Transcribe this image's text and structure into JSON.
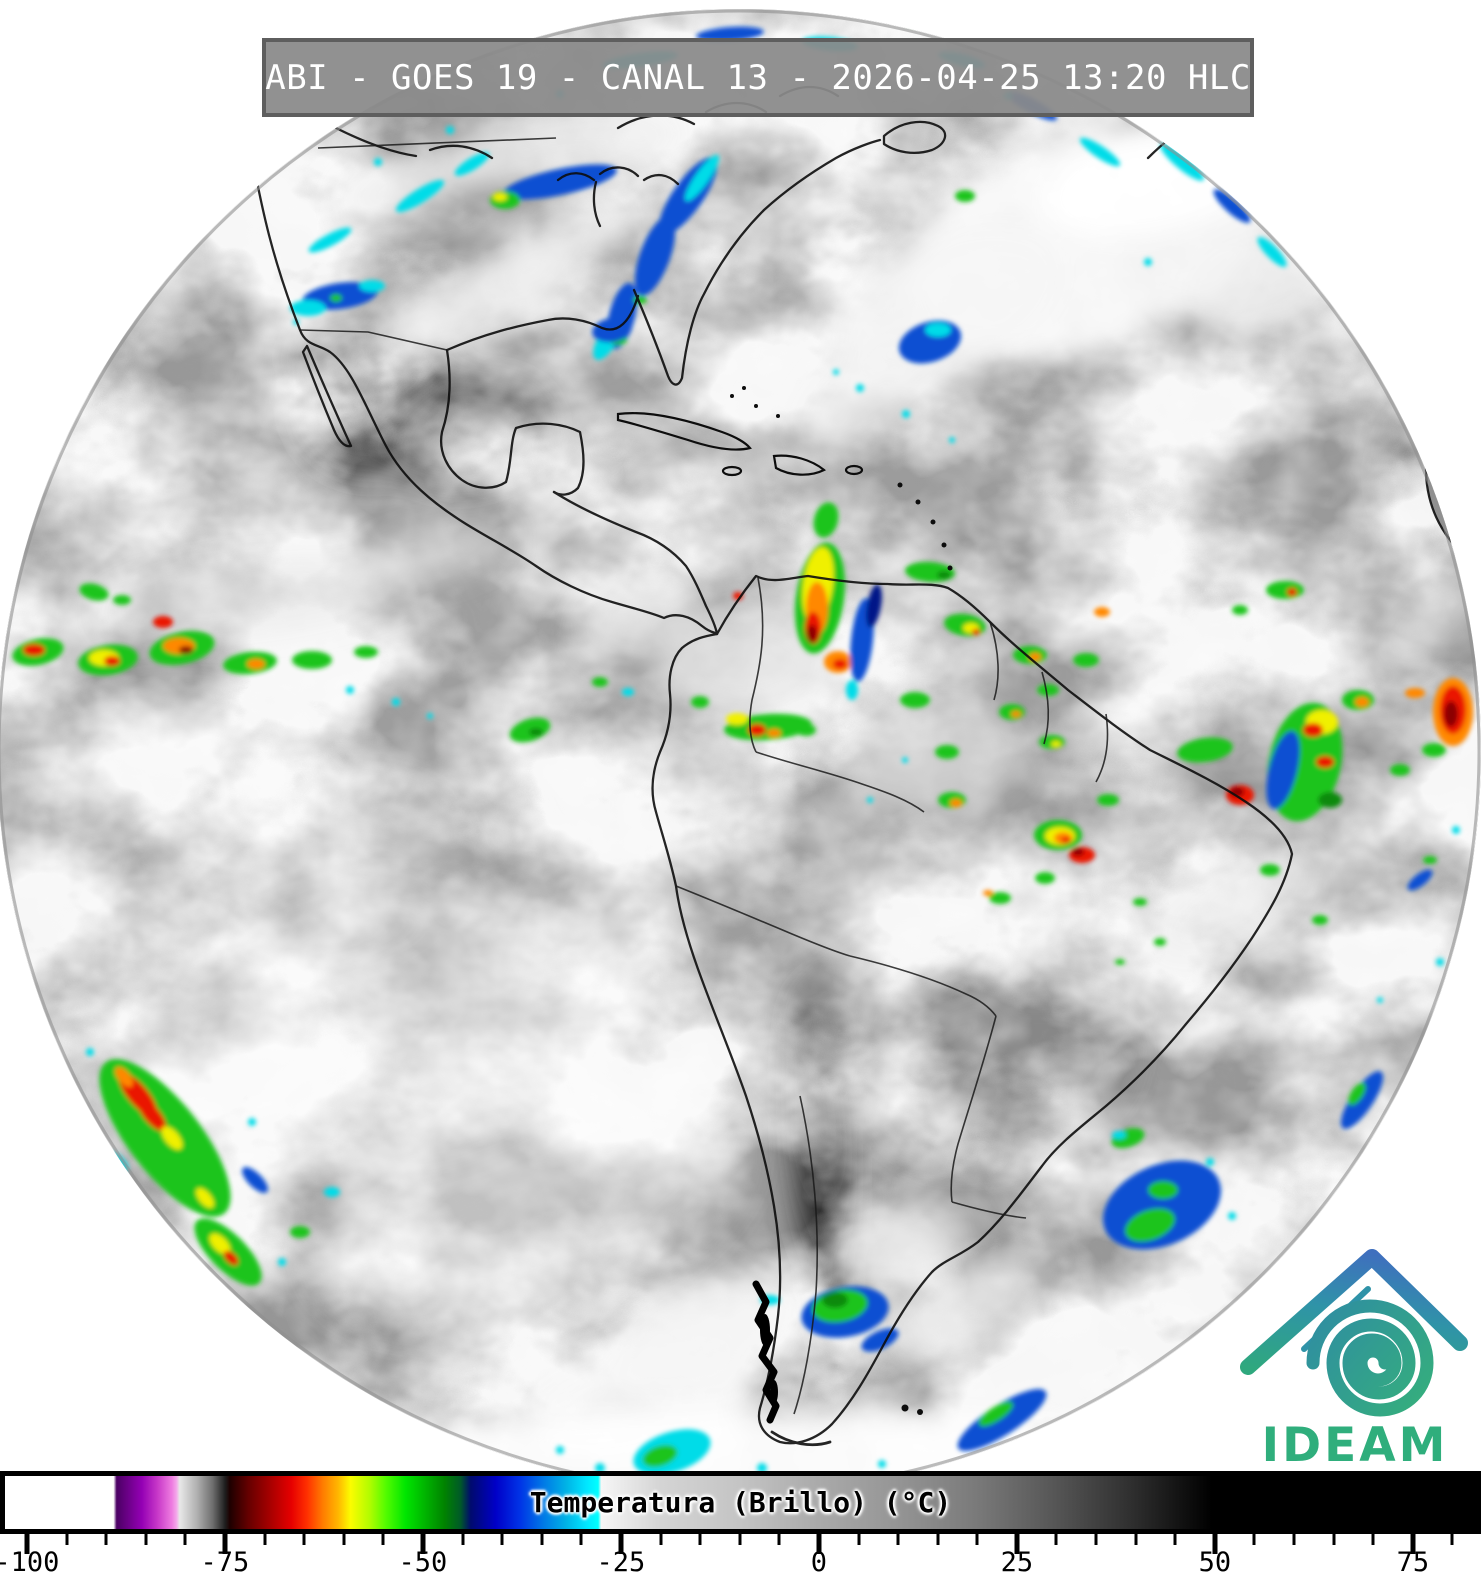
{
  "titlebar": {
    "text": "ABI - GOES 19 - CANAL 13 - 2026-04-25 13:20 HLC"
  },
  "colorbar": {
    "title": "Temperatura (Brillo) (°C)",
    "domain_min": -103.4,
    "domain_max": 83.6,
    "tick_min": -100,
    "tick_max": 80,
    "minor_step": 5,
    "major_step": 25,
    "major_tick_labels": [
      "-100",
      "-75",
      "-50",
      "-25",
      "0",
      "25",
      "50",
      "75"
    ],
    "gradient_stops": [
      {
        "t": -103.4,
        "c": "#ffffff"
      },
      {
        "t": -89.6,
        "c": "#ffffff"
      },
      {
        "t": -89.2,
        "c": "#4b0064"
      },
      {
        "t": -86.0,
        "c": "#9400b4"
      },
      {
        "t": -84.0,
        "c": "#c838c8"
      },
      {
        "t": -82.2,
        "c": "#ee7ce0"
      },
      {
        "t": -81.6,
        "c": "#f4a8ea"
      },
      {
        "t": -81.2,
        "c": "#e8e8e8"
      },
      {
        "t": -79.0,
        "c": "#b0b0b0"
      },
      {
        "t": -77.0,
        "c": "#6e6e6e"
      },
      {
        "t": -75.4,
        "c": "#1e1e1e"
      },
      {
        "t": -74.8,
        "c": "#1e0000"
      },
      {
        "t": -72.5,
        "c": "#640000"
      },
      {
        "t": -70.0,
        "c": "#a00000"
      },
      {
        "t": -67.0,
        "c": "#e60000"
      },
      {
        "t": -65.0,
        "c": "#ff3000"
      },
      {
        "t": -63.0,
        "c": "#ff7c00"
      },
      {
        "t": -61.0,
        "c": "#ffb800"
      },
      {
        "t": -59.5,
        "c": "#fcfc00"
      },
      {
        "t": -57.0,
        "c": "#b0fc00"
      },
      {
        "t": -55.0,
        "c": "#54fc00"
      },
      {
        "t": -52.5,
        "c": "#00e600"
      },
      {
        "t": -50.0,
        "c": "#00b400"
      },
      {
        "t": -47.5,
        "c": "#008200"
      },
      {
        "t": -45.5,
        "c": "#005a28"
      },
      {
        "t": -44.2,
        "c": "#000a6e"
      },
      {
        "t": -41.0,
        "c": "#0000c8"
      },
      {
        "t": -38.0,
        "c": "#0032e6"
      },
      {
        "t": -35.0,
        "c": "#0078e6"
      },
      {
        "t": -32.0,
        "c": "#00b4e6"
      },
      {
        "t": -29.5,
        "c": "#00e6ff"
      },
      {
        "t": -28.0,
        "c": "#00ffff"
      },
      {
        "t": -27.6,
        "c": "#f6f6f6"
      },
      {
        "t": -20.0,
        "c": "#d4d4d4"
      },
      {
        "t": -10.0,
        "c": "#c4c4c4"
      },
      {
        "t": 0.0,
        "c": "#aaaaaa"
      },
      {
        "t": 10.0,
        "c": "#959595"
      },
      {
        "t": 20.0,
        "c": "#7a7a7a"
      },
      {
        "t": 30.0,
        "c": "#565656"
      },
      {
        "t": 40.0,
        "c": "#2e2e2e"
      },
      {
        "t": 50.0,
        "c": "#000000"
      },
      {
        "t": 83.6,
        "c": "#000000"
      }
    ]
  },
  "logo": {
    "text": "IDEAM",
    "text_color": "#2fae7c",
    "roof_gradient": [
      "#3f6fbe",
      "#2f93a8",
      "#2fa87e"
    ],
    "spiral_gradient": [
      "#2f8fa0",
      "#35ad7e"
    ]
  }
}
